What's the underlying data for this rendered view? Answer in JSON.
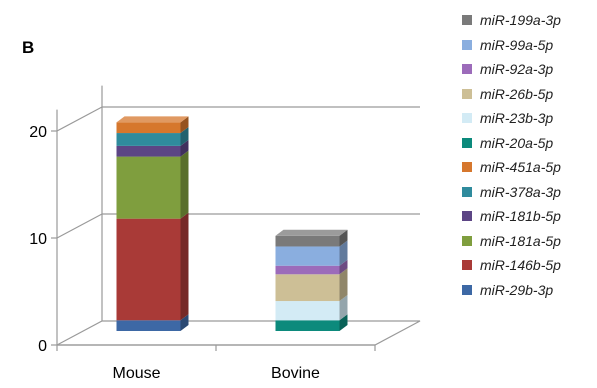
{
  "panel_label": "B",
  "chart_data": {
    "type": "bar",
    "stacked": true,
    "three_d": true,
    "categories": [
      "Mouse",
      "Bovine"
    ],
    "y_ticks": [
      "0",
      "10",
      "20"
    ],
    "ylim": [
      0,
      22
    ],
    "grid": true,
    "legend_position": "right",
    "series": [
      {
        "name": "miR-29b-3p",
        "color": "#3d68a5",
        "values": [
          1.0,
          0.0
        ]
      },
      {
        "name": "miR-146b-5p",
        "color": "#a93a37",
        "values": [
          9.5,
          0.0
        ]
      },
      {
        "name": "miR-181a-5p",
        "color": "#7f9e3e",
        "values": [
          5.8,
          0.0
        ]
      },
      {
        "name": "miR-181b-5p",
        "color": "#5c4585",
        "values": [
          1.0,
          0.0
        ]
      },
      {
        "name": "miR-378a-3p",
        "color": "#2f8b9d",
        "values": [
          1.2,
          0.0
        ]
      },
      {
        "name": "miR-451a-5p",
        "color": "#d6772d",
        "values": [
          1.0,
          0.0
        ]
      },
      {
        "name": "miR-20a-5p",
        "color": "#0c8a7c",
        "values": [
          0.0,
          1.0
        ]
      },
      {
        "name": "miR-23b-3p",
        "color": "#d3ebf5",
        "values": [
          0.0,
          1.8
        ]
      },
      {
        "name": "miR-26b-5p",
        "color": "#cdbf96",
        "values": [
          0.0,
          2.5
        ]
      },
      {
        "name": "miR-92a-3p",
        "color": "#9c6bba",
        "values": [
          0.0,
          0.8
        ]
      },
      {
        "name": "miR-99a-5p",
        "color": "#8aaedf",
        "values": [
          0.0,
          1.8
        ]
      },
      {
        "name": "miR-199a-3p",
        "color": "#7a7a7a",
        "values": [
          0.0,
          1.0
        ]
      }
    ]
  }
}
